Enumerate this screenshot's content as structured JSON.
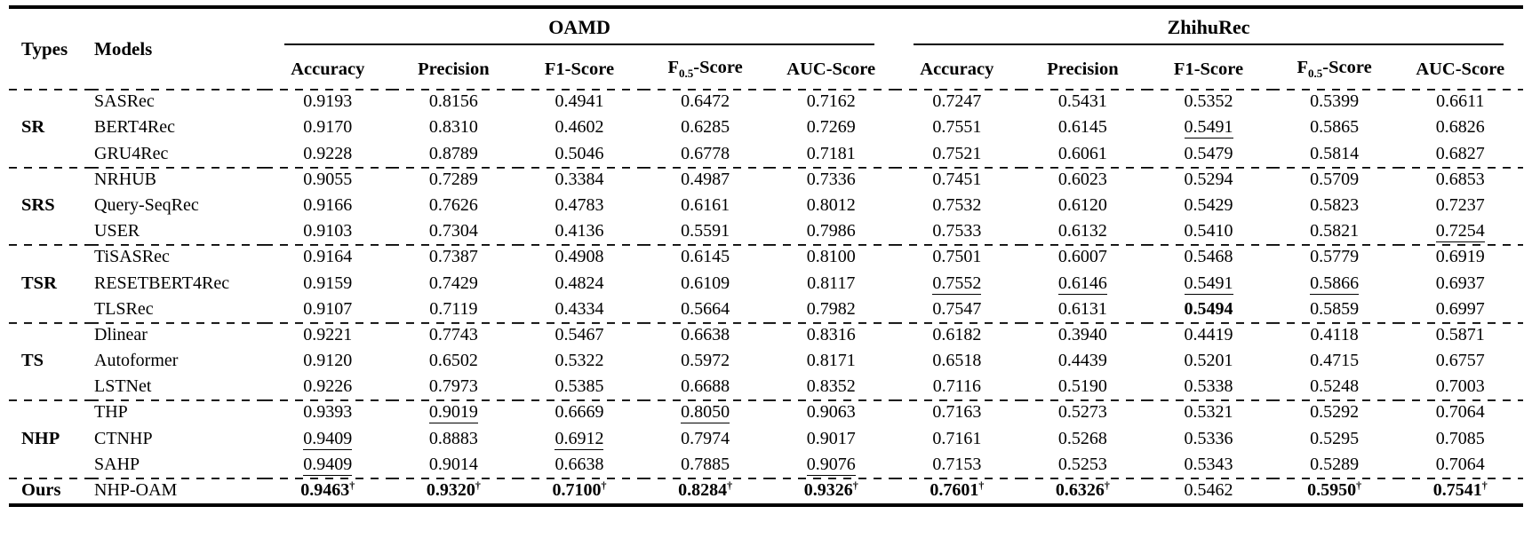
{
  "table": {
    "types_header": "Types",
    "models_header": "Models",
    "dagger_symbol": "†",
    "groups": [
      {
        "label": "OAMD",
        "metrics": [
          "Accuracy",
          "Precision",
          "F1-Score",
          "F0.5-Score",
          "AUC-Score"
        ]
      },
      {
        "label": "ZhihuRec",
        "metrics": [
          "Accuracy",
          "Precision",
          "F1-Score",
          "F0.5-Score",
          "AUC-Score"
        ]
      }
    ],
    "row_groups": [
      {
        "type": "SR",
        "rows": [
          {
            "model": "SASRec",
            "values": [
              "0.9193",
              "0.8156",
              "0.4941",
              "0.6472",
              "0.7162",
              "0.7247",
              "0.5431",
              "0.5352",
              "0.5399",
              "0.6611"
            ]
          },
          {
            "model": "BERT4Rec",
            "values": [
              "0.9170",
              "0.8310",
              "0.4602",
              "0.6285",
              "0.7269",
              "0.7551",
              "0.6145",
              {
                "v": "0.5491",
                "u": true
              },
              "0.5865",
              "0.6826"
            ]
          },
          {
            "model": "GRU4Rec",
            "values": [
              "0.9228",
              "0.8789",
              "0.5046",
              "0.6778",
              "0.7181",
              "0.7521",
              "0.6061",
              "0.5479",
              "0.5814",
              "0.6827"
            ]
          }
        ]
      },
      {
        "type": "SRS",
        "rows": [
          {
            "model": "NRHUB",
            "values": [
              "0.9055",
              "0.7289",
              "0.3384",
              "0.4987",
              "0.7336",
              "0.7451",
              "0.6023",
              "0.5294",
              "0.5709",
              "0.6853"
            ]
          },
          {
            "model": "Query-SeqRec",
            "values": [
              "0.9166",
              "0.7626",
              "0.4783",
              "0.6161",
              "0.8012",
              "0.7532",
              "0.6120",
              "0.5429",
              "0.5823",
              "0.7237"
            ]
          },
          {
            "model": "USER",
            "values": [
              "0.9103",
              "0.7304",
              "0.4136",
              "0.5591",
              "0.7986",
              "0.7533",
              "0.6132",
              "0.5410",
              "0.5821",
              {
                "v": "0.7254",
                "u": true
              }
            ]
          }
        ]
      },
      {
        "type": "TSR",
        "rows": [
          {
            "model": "TiSASRec",
            "values": [
              "0.9164",
              "0.7387",
              "0.4908",
              "0.6145",
              "0.8100",
              "0.7501",
              "0.6007",
              "0.5468",
              "0.5779",
              "0.6919"
            ]
          },
          {
            "model": "RESETBERT4Rec",
            "values": [
              "0.9159",
              "0.7429",
              "0.4824",
              "0.6109",
              "0.8117",
              {
                "v": "0.7552",
                "u": true
              },
              {
                "v": "0.6146",
                "u": true
              },
              {
                "v": "0.5491",
                "u": true
              },
              {
                "v": "0.5866",
                "u": true
              },
              "0.6937"
            ]
          },
          {
            "model": "TLSRec",
            "values": [
              "0.9107",
              "0.7119",
              "0.4334",
              "0.5664",
              "0.7982",
              "0.7547",
              "0.6131",
              {
                "v": "0.5494",
                "b": true
              },
              "0.5859",
              "0.6997"
            ]
          }
        ]
      },
      {
        "type": "TS",
        "rows": [
          {
            "model": "Dlinear",
            "values": [
              "0.9221",
              "0.7743",
              "0.5467",
              "0.6638",
              "0.8316",
              "0.6182",
              "0.3940",
              "0.4419",
              "0.4118",
              "0.5871"
            ]
          },
          {
            "model": "Autoformer",
            "values": [
              "0.9120",
              "0.6502",
              "0.5322",
              "0.5972",
              "0.8171",
              "0.6518",
              "0.4439",
              "0.5201",
              "0.4715",
              "0.6757"
            ]
          },
          {
            "model": "LSTNet",
            "values": [
              "0.9226",
              "0.7973",
              "0.5385",
              "0.6688",
              "0.8352",
              "0.7116",
              "0.5190",
              "0.5338",
              "0.5248",
              "0.7003"
            ]
          }
        ]
      },
      {
        "type": "NHP",
        "rows": [
          {
            "model": "THP",
            "values": [
              "0.9393",
              {
                "v": "0.9019",
                "u": true
              },
              "0.6669",
              {
                "v": "0.8050",
                "u": true
              },
              "0.9063",
              "0.7163",
              "0.5273",
              "0.5321",
              "0.5292",
              "0.7064"
            ]
          },
          {
            "model": "CTNHP",
            "values": [
              {
                "v": "0.9409",
                "u": true
              },
              "0.8883",
              {
                "v": "0.6912",
                "u": true
              },
              "0.7974",
              "0.9017",
              "0.7161",
              "0.5268",
              "0.5336",
              "0.5295",
              "0.7085"
            ]
          },
          {
            "model": "SAHP",
            "values": [
              {
                "v": "0.9409",
                "u": true
              },
              "0.9014",
              "0.6638",
              "0.7885",
              {
                "v": "0.9076",
                "u": true
              },
              "0.7153",
              "0.5253",
              "0.5343",
              "0.5289",
              "0.7064"
            ]
          }
        ]
      },
      {
        "type": "Ours",
        "rows": [
          {
            "model": "NHP-OAM",
            "values": [
              {
                "v": "0.9463",
                "b": true,
                "dagger": true
              },
              {
                "v": "0.9320",
                "b": true,
                "dagger": true
              },
              {
                "v": "0.7100",
                "b": true,
                "dagger": true
              },
              {
                "v": "0.8284",
                "b": true,
                "dagger": true
              },
              {
                "v": "0.9326",
                "b": true,
                "dagger": true
              },
              {
                "v": "0.7601",
                "b": true,
                "dagger": true
              },
              {
                "v": "0.6326",
                "b": true,
                "dagger": true
              },
              "0.5462",
              {
                "v": "0.5950",
                "b": true,
                "dagger": true
              },
              {
                "v": "0.7541",
                "b": true,
                "dagger": true
              }
            ]
          }
        ]
      }
    ]
  }
}
